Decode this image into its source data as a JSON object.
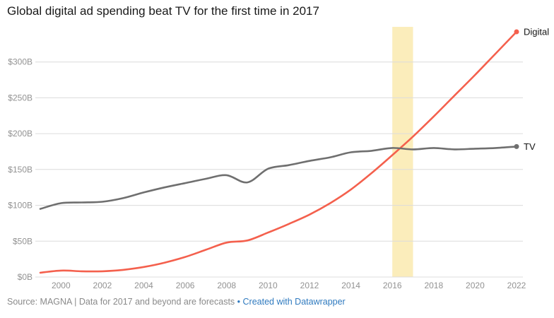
{
  "footer": {
    "source": "Source: MAGNA | Data for 2017 and beyond are forecasts",
    "separator": " • ",
    "attribution": "Created with Datawrapper",
    "link_color": "#2f7abf"
  },
  "chart_data": {
    "type": "line",
    "title": "Global digital ad spending beat TV for the first time in 2017",
    "x": [
      1999,
      2000,
      2001,
      2002,
      2003,
      2004,
      2005,
      2006,
      2007,
      2008,
      2009,
      2010,
      2011,
      2012,
      2013,
      2014,
      2015,
      2016,
      2017,
      2018,
      2019,
      2020,
      2021,
      2022
    ],
    "series": [
      {
        "name": "Digital",
        "color": "#f4604d",
        "values": [
          6,
          9,
          8,
          8,
          10,
          14,
          20,
          28,
          38,
          48,
          51,
          62,
          74,
          87,
          103,
          122,
          145,
          170,
          196,
          224,
          253,
          282,
          312,
          342
        ]
      },
      {
        "name": "TV",
        "color": "#6f6f6f",
        "values": [
          95,
          103,
          104,
          105,
          110,
          118,
          125,
          131,
          137,
          142,
          132,
          151,
          156,
          162,
          167,
          174,
          176,
          180,
          178,
          180,
          178,
          179,
          180,
          182
        ]
      }
    ],
    "xticks": [
      2000,
      2002,
      2004,
      2006,
      2008,
      2010,
      2012,
      2014,
      2016,
      2018,
      2020,
      2022
    ],
    "yticks": [
      0,
      50,
      100,
      150,
      200,
      250,
      300
    ],
    "ytick_labels": [
      "$0B",
      "$50B",
      "$100B",
      "$150B",
      "$200B",
      "$250B",
      "$300B"
    ],
    "xlim": [
      1999,
      2022
    ],
    "ylim": [
      0,
      345
    ],
    "grid": true,
    "grid_color": "#dcdcdc",
    "legend_position": "line-end-labels",
    "highlight_band": {
      "from": 2016,
      "to": 2017,
      "color": "#fbedbb"
    },
    "units": "billions USD"
  }
}
